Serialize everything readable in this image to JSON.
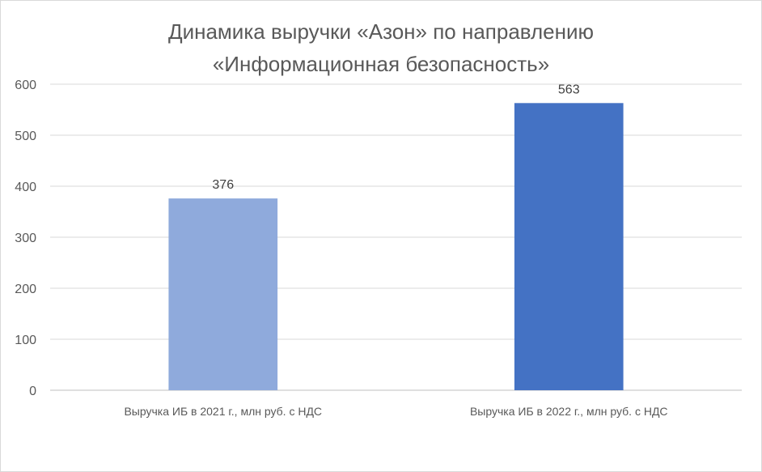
{
  "chart_data": {
    "type": "bar",
    "title": [
      "Динамика выручки «Азон» по направлению",
      "«Информационная безопасность»"
    ],
    "categories": [
      "Выручка ИБ в 2021 г., млн руб. с НДС",
      "Выручка ИБ в 2022 г., млн руб. с НДС"
    ],
    "values": [
      376,
      563
    ],
    "data_labels": [
      "376",
      "563"
    ],
    "bar_colors": [
      "#8faadc",
      "#4472c4"
    ],
    "ylim": [
      0,
      600
    ],
    "y_ticks": [
      0,
      100,
      200,
      300,
      400,
      500,
      600
    ],
    "y_tick_labels": [
      "0",
      "100",
      "200",
      "300",
      "400",
      "500",
      "600"
    ],
    "grid": true,
    "legend": "none"
  }
}
